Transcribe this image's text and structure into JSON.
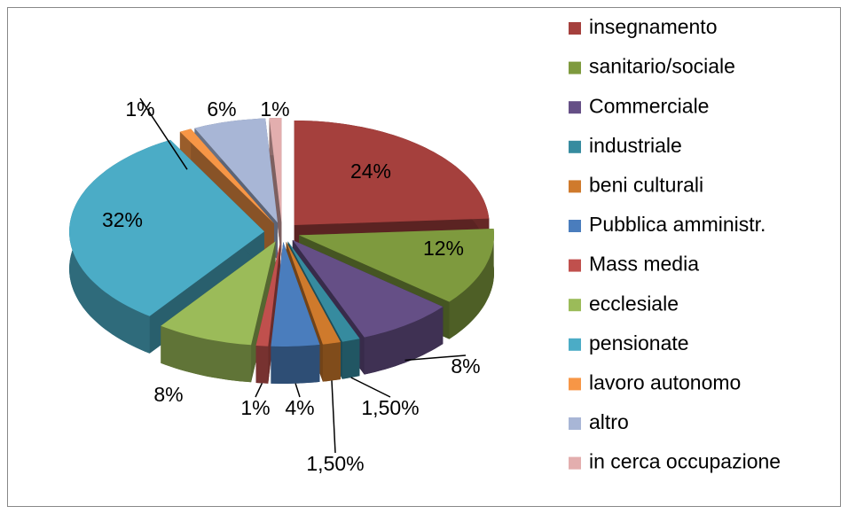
{
  "chart_data": {
    "type": "pie",
    "three_d": true,
    "exploded": true,
    "categories": [
      "insegnamento",
      "sanitario/sociale",
      "Commerciale",
      "industriale",
      "beni culturali",
      "Pubblica amministr.",
      "Mass media",
      "ecclesiale",
      "pensionate",
      "lavoro autonomo",
      "altro",
      "in cerca occupazione"
    ],
    "values": [
      24,
      12,
      8,
      1.5,
      1.5,
      4,
      1,
      8,
      32,
      1,
      6,
      1
    ],
    "value_labels": [
      "24%",
      "12%",
      "8%",
      "1,50%",
      "1,50%",
      "4%",
      "1%",
      "8%",
      "32%",
      "1%",
      "6%",
      "1%"
    ],
    "colors": [
      "#a5403d",
      "#7e9a3e",
      "#654f86",
      "#368b9f",
      "#cf7a2c",
      "#4a7dbd",
      "#c0504d",
      "#9bbb59",
      "#4bacc6",
      "#f79646",
      "#a8b6d6",
      "#e3aeae"
    ],
    "legend": "right"
  }
}
